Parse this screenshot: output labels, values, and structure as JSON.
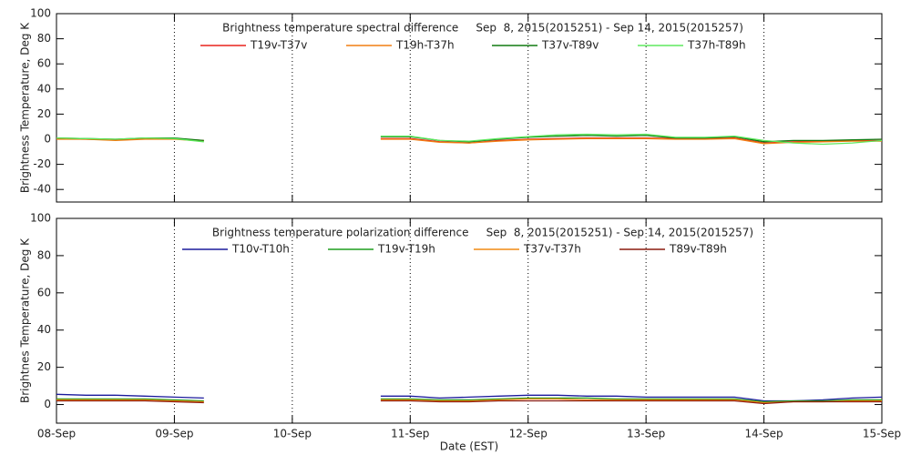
{
  "chart_data": [
    {
      "type": "line",
      "title": "Brightness temperature spectral difference     Sep  8, 2015(2015251) - Sep 14, 2015(2015257)",
      "y_label": "Brightness Temperature, Deg K",
      "x": [
        0,
        0.25,
        0.5,
        0.75,
        1,
        1.25,
        1.5,
        1.75,
        2,
        2.25,
        2.5,
        2.75,
        3,
        3.25,
        3.5,
        3.75,
        4,
        4.25,
        4.5,
        4.75,
        5,
        5.25,
        5.5,
        5.75,
        6,
        6.25,
        6.5,
        6.75,
        7
      ],
      "xlim": [
        0,
        7
      ],
      "xticks": [
        0,
        1,
        2,
        3,
        4,
        5,
        6,
        7
      ],
      "grid": true,
      "ylim": [
        -50,
        100
      ],
      "yticks": [
        -40,
        -20,
        0,
        20,
        40,
        60,
        80,
        100
      ],
      "legend": "top",
      "series": [
        {
          "name": "T19v-T37v",
          "color": "#e8221c",
          "values": [
            0.5,
            0,
            -0.5,
            0.5,
            0.5,
            -1,
            null,
            null,
            null,
            null,
            null,
            0.5,
            0.5,
            -2,
            -3,
            -1,
            0,
            0.5,
            1,
            1,
            1,
            0.5,
            0.5,
            1,
            -3,
            -2,
            -1.5,
            -1,
            -1
          ]
        },
        {
          "name": "T19h-T37h",
          "color": "#f07f12",
          "values": [
            0,
            0,
            -1,
            0,
            0,
            -1.5,
            null,
            null,
            null,
            null,
            null,
            0,
            0,
            -2.5,
            -3,
            -1.5,
            -0.5,
            0,
            0.5,
            0.5,
            0.5,
            0,
            0,
            0.5,
            -3.5,
            -2.5,
            -2,
            -1.5,
            -1.5
          ]
        },
        {
          "name": "T37v-T89v",
          "color": "#117a11",
          "values": [
            1,
            0.5,
            0,
            1,
            1,
            -1,
            null,
            null,
            null,
            null,
            null,
            2,
            2,
            -1,
            -2,
            0,
            1.5,
            2.5,
            3,
            2.5,
            3,
            1,
            1,
            2,
            -2,
            -1,
            -1,
            -0.5,
            0
          ]
        },
        {
          "name": "T37h-T89h",
          "color": "#5ee85e",
          "values": [
            1,
            0.5,
            0,
            1,
            0.5,
            -2,
            null,
            null,
            null,
            null,
            null,
            2.5,
            2.5,
            -1,
            -1.5,
            0.5,
            2,
            3.5,
            4,
            3.5,
            4,
            1.5,
            1.5,
            2.5,
            -1,
            -3,
            -4,
            -3,
            -1
          ]
        }
      ]
    },
    {
      "type": "line",
      "title": "Brightness temperature polarization difference     Sep  8, 2015(2015251) - Sep 14, 2015(2015257)",
      "y_label": "Brightnes Temperature, Deg K",
      "x_label": "Date (EST)",
      "x": [
        0,
        0.25,
        0.5,
        0.75,
        1,
        1.25,
        1.5,
        1.75,
        2,
        2.25,
        2.5,
        2.75,
        3,
        3.25,
        3.5,
        3.75,
        4,
        4.25,
        4.5,
        4.75,
        5,
        5.25,
        5.5,
        5.75,
        6,
        6.25,
        6.5,
        6.75,
        7
      ],
      "xlim": [
        0,
        7
      ],
      "xticks": [
        {
          "value": 0,
          "label": "08-Sep"
        },
        {
          "value": 1,
          "label": "09-Sep"
        },
        {
          "value": 2,
          "label": "10-Sep"
        },
        {
          "value": 3,
          "label": "11-Sep"
        },
        {
          "value": 4,
          "label": "12-Sep"
        },
        {
          "value": 5,
          "label": "13-Sep"
        },
        {
          "value": 6,
          "label": "14-Sep"
        },
        {
          "value": 7,
          "label": "15-Sep"
        }
      ],
      "grid": true,
      "ylim": [
        -10,
        100
      ],
      "yticks": [
        0,
        20,
        40,
        60,
        80,
        100
      ],
      "legend": "top",
      "series": [
        {
          "name": "T10v-T10h",
          "color": "#1a1a9c",
          "values": [
            5.5,
            5,
            5,
            4.5,
            4,
            3.5,
            null,
            null,
            null,
            null,
            null,
            4.5,
            4.5,
            3.5,
            4,
            4.5,
            5,
            5,
            4.5,
            4.5,
            4,
            4,
            4,
            4,
            2,
            2,
            2.5,
            3.5,
            4
          ]
        },
        {
          "name": "T19v-T19h",
          "color": "#1e9e1e",
          "values": [
            3,
            3,
            3,
            3,
            2.5,
            2,
            null,
            null,
            null,
            null,
            null,
            3,
            3,
            2.5,
            2.5,
            3,
            3.5,
            3.5,
            3.5,
            3,
            3,
            3,
            3,
            3,
            1.5,
            2,
            2,
            2.5,
            2.5
          ]
        },
        {
          "name": "T37v-T37h",
          "color": "#f08a12",
          "values": [
            2.5,
            2.5,
            2.5,
            2.5,
            2,
            1.5,
            null,
            null,
            null,
            null,
            null,
            2.5,
            2.5,
            2,
            2,
            2.5,
            3,
            3,
            2.5,
            2.5,
            2.5,
            2.5,
            2.5,
            2.5,
            1,
            1.5,
            1.5,
            2,
            2
          ]
        },
        {
          "name": "T89v-T89h",
          "color": "#8b1a0e",
          "values": [
            2,
            2,
            2,
            2,
            1.5,
            1,
            null,
            null,
            null,
            null,
            null,
            2,
            2,
            1.5,
            1.5,
            2,
            2,
            2,
            2,
            2,
            2,
            2,
            2,
            2,
            0.5,
            1.5,
            1.5,
            1.5,
            1.5
          ]
        }
      ]
    }
  ]
}
